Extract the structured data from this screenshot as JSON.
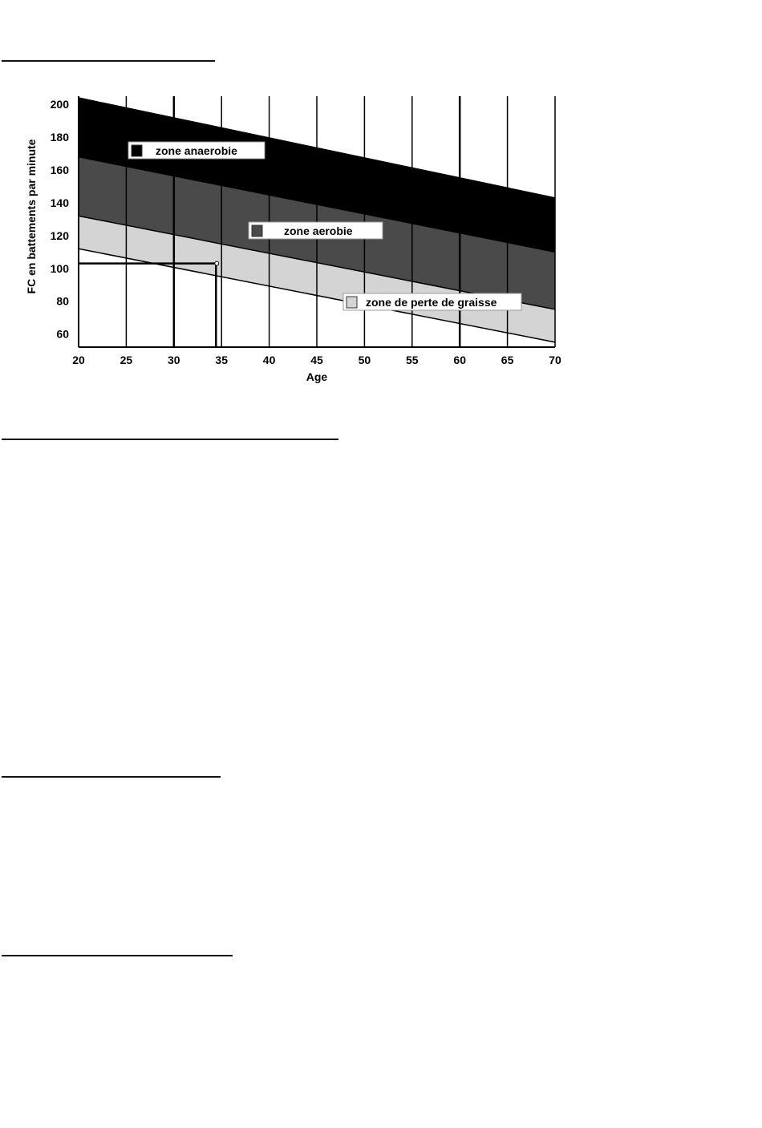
{
  "chart_data": {
    "type": "area",
    "xlabel": "Age",
    "ylabel": "FC en battements par minute",
    "xlim": [
      20,
      70
    ],
    "ylim": [
      52,
      205
    ],
    "xticks": [
      20,
      25,
      30,
      35,
      40,
      45,
      50,
      55,
      60,
      65,
      70
    ],
    "yticks": [
      60,
      80,
      100,
      120,
      140,
      160,
      180,
      200
    ],
    "grid": "vertical",
    "boundaries": {
      "x": [
        20,
        70
      ],
      "max": [
        204,
        143
      ],
      "anaerobic_lower": [
        168,
        110
      ],
      "aerobic_lower": [
        132,
        75
      ],
      "fat_lower": [
        112,
        55
      ]
    },
    "series": [
      {
        "name": "zone anaerobie",
        "color": "#000000",
        "upper": "max",
        "lower": "anaerobic_lower"
      },
      {
        "name": "zone aerobie",
        "color": "#4a4a4a",
        "upper": "anaerobic_lower",
        "lower": "aerobic_lower"
      },
      {
        "name": "zone de perte de graisse",
        "color": "#d4d4d4",
        "upper": "aerobic_lower",
        "lower": "fat_lower"
      }
    ],
    "annotation": {
      "x": 34.5,
      "y": 103
    }
  }
}
